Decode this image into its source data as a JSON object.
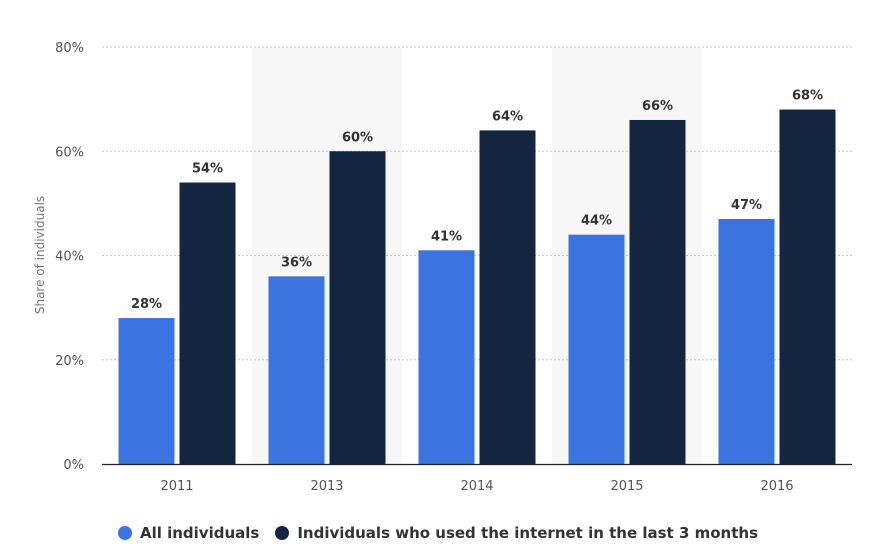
{
  "chart_data": {
    "type": "bar",
    "categories": [
      "2011",
      "2013",
      "2014",
      "2015",
      "2016"
    ],
    "series": [
      {
        "name": "All individuals",
        "color": "#3b74e0",
        "values": [
          28,
          36,
          41,
          44,
          47
        ]
      },
      {
        "name": "Individuals who used the internet in the last 3 months",
        "color": "#14263f",
        "values": [
          54,
          60,
          64,
          66,
          68
        ]
      }
    ],
    "value_suffix": "%",
    "ylabel": "Share of individuals",
    "ylim": [
      0,
      80
    ],
    "yticks": [
      "0%",
      "20%",
      "40%",
      "60%",
      "80%"
    ],
    "grid": true,
    "legend": "bottom-center",
    "alternating_band_color": "#f7f7f7"
  }
}
